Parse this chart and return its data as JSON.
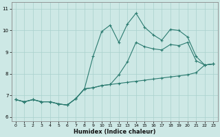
{
  "xlabel": "Humidex (Indice chaleur)",
  "xlim": [
    -0.5,
    23.5
  ],
  "ylim": [
    5.8,
    11.3
  ],
  "xticks": [
    0,
    1,
    2,
    3,
    4,
    5,
    6,
    7,
    8,
    9,
    10,
    11,
    12,
    13,
    14,
    15,
    16,
    17,
    18,
    19,
    20,
    21,
    22,
    23
  ],
  "yticks": [
    6,
    7,
    8,
    9,
    10,
    11
  ],
  "bg_color": "#cde8e5",
  "grid_color": "#a8d0cc",
  "line_color": "#2a7a6f",
  "line1_y": [
    6.8,
    6.7,
    6.8,
    6.7,
    6.7,
    6.6,
    6.55,
    6.85,
    7.3,
    7.35,
    7.45,
    7.5,
    7.55,
    7.6,
    7.65,
    7.7,
    7.75,
    7.8,
    7.85,
    7.9,
    7.95,
    8.05,
    8.4,
    8.45
  ],
  "line2_y": [
    6.8,
    6.7,
    6.8,
    6.7,
    6.7,
    6.6,
    6.55,
    6.85,
    7.3,
    8.8,
    9.95,
    10.25,
    9.45,
    10.3,
    10.8,
    10.15,
    9.8,
    9.55,
    10.05,
    10.0,
    9.7,
    8.8,
    8.4,
    8.45
  ],
  "line3_y": [
    6.8,
    6.7,
    6.8,
    6.7,
    6.7,
    6.6,
    6.55,
    6.85,
    7.3,
    7.35,
    7.45,
    7.5,
    7.95,
    8.55,
    9.45,
    9.25,
    9.15,
    9.1,
    9.35,
    9.3,
    9.45,
    8.6,
    8.4,
    8.45
  ]
}
